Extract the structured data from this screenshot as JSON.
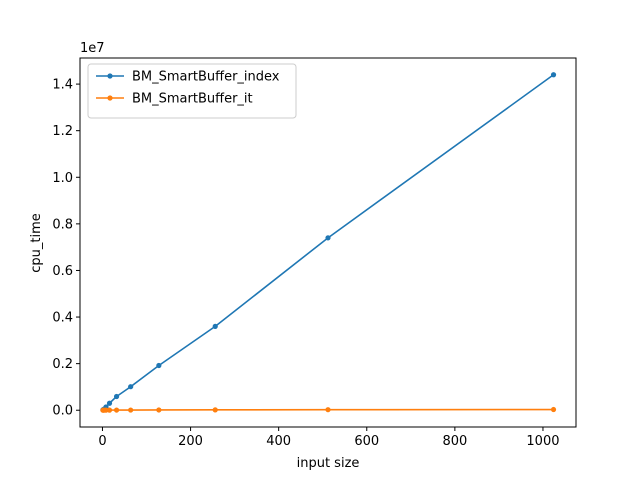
{
  "chart_data": {
    "type": "line",
    "title": "",
    "xlabel": "input size",
    "ylabel": "cpu_time",
    "y_offset_label": "1e7",
    "y_scale_factor": 10000000,
    "xlim": [
      -51,
      1075
    ],
    "ylim": [
      -720000,
      15120000
    ],
    "x_ticks": [
      0,
      200,
      400,
      600,
      800,
      1000
    ],
    "x_tick_labels": [
      "0",
      "200",
      "400",
      "600",
      "800",
      "1000"
    ],
    "y_ticks": [
      0,
      2000000,
      4000000,
      6000000,
      8000000,
      10000000,
      12000000,
      14000000
    ],
    "y_tick_labels": [
      "0.0",
      "0.2",
      "0.4",
      "0.6",
      "0.8",
      "1.0",
      "1.2",
      "1.4"
    ],
    "grid": false,
    "legend_position": "top-left",
    "series": [
      {
        "name": "BM_SmartBuffer_index",
        "color": "#1f77b4",
        "x": [
          1,
          2,
          4,
          8,
          16,
          32,
          64,
          128,
          256,
          512,
          1024
        ],
        "y": [
          14000,
          28000,
          56000,
          140000,
          300000,
          590000,
          1010000,
          1920000,
          3600000,
          7400000,
          14400000
        ]
      },
      {
        "name": "BM_SmartBuffer_it",
        "color": "#ff7f0e",
        "x": [
          1,
          2,
          4,
          8,
          16,
          32,
          64,
          128,
          256,
          512,
          1024
        ],
        "y": [
          1000,
          1500,
          2500,
          3500,
          4500,
          6000,
          8000,
          11000,
          16000,
          22000,
          30000
        ]
      }
    ]
  }
}
